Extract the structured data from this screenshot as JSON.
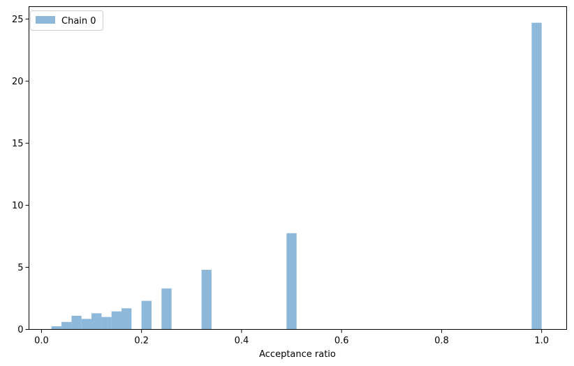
{
  "chart_data": {
    "type": "bar",
    "title": "",
    "xlabel": "Acceptance ratio",
    "ylabel": "",
    "xlim": [
      -0.025,
      1.05
    ],
    "ylim": [
      0,
      26
    ],
    "xticks": [
      0.0,
      0.2,
      0.4,
      0.6,
      0.8,
      1.0
    ],
    "xtick_labels": [
      "0.0",
      "0.2",
      "0.4",
      "0.6",
      "0.8",
      "1.0"
    ],
    "yticks": [
      0,
      5,
      10,
      15,
      20,
      25
    ],
    "ytick_labels": [
      "0",
      "5",
      "10",
      "15",
      "20",
      "25"
    ],
    "bin_width": 0.02,
    "series": [
      {
        "name": "Chain 0",
        "color": "#8db8d9",
        "bins": [
          {
            "x0": 0.02,
            "value": 0.25
          },
          {
            "x0": 0.04,
            "value": 0.6
          },
          {
            "x0": 0.06,
            "value": 1.1
          },
          {
            "x0": 0.08,
            "value": 0.85
          },
          {
            "x0": 0.1,
            "value": 1.3
          },
          {
            "x0": 0.12,
            "value": 1.0
          },
          {
            "x0": 0.14,
            "value": 1.45
          },
          {
            "x0": 0.16,
            "value": 1.7
          },
          {
            "x0": 0.2,
            "value": 2.3
          },
          {
            "x0": 0.24,
            "value": 3.3
          },
          {
            "x0": 0.32,
            "value": 4.8
          },
          {
            "x0": 0.49,
            "value": 7.75
          },
          {
            "x0": 0.98,
            "value": 24.7
          }
        ]
      }
    ],
    "grid": false,
    "legend_position": "top-left"
  }
}
